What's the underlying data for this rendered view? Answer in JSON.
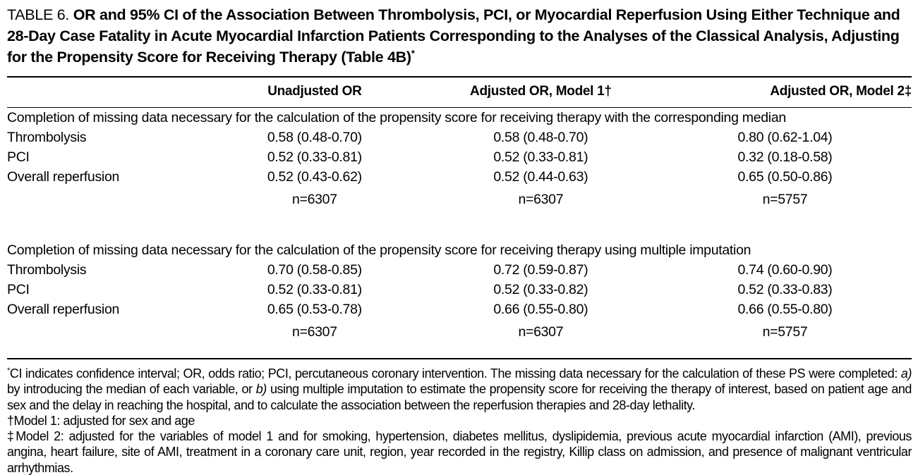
{
  "title": {
    "label": "TABLE 6.",
    "text": "OR and 95% CI of the Association Between Thrombolysis, PCI, or Myocardial Reperfusion Using Either Technique and 28-Day Case Fatality in Acute Myocardial Infarction Patients Corresponding to the Analyses of the Classical Analysis, Adjusting for the Propensity Score for Receiving Therapy (Table 4B)",
    "marker": "*"
  },
  "table": {
    "columns": [
      "",
      "Unadjusted OR",
      "Adjusted OR, Model 1†",
      "Adjusted OR, Model 2‡"
    ],
    "sections": [
      {
        "header": "Completion of missing data necessary for the calculation of the propensity score for receiving therapy with the corresponding median",
        "rows": [
          {
            "label": "Thrombolysis",
            "values": [
              "0.58 (0.48-0.70)",
              "0.58 (0.48-0.70)",
              "0.80 (0.62-1.04)"
            ]
          },
          {
            "label": "PCI",
            "values": [
              "0.52 (0.33-0.81)",
              "0.52 (0.33-0.81)",
              "0.32 (0.18-0.58)"
            ]
          },
          {
            "label": "Overall reperfusion",
            "values": [
              "0.52 (0.43-0.62)",
              "0.52 (0.44-0.63)",
              "0.65 (0.50-0.86)"
            ]
          }
        ],
        "n_row": [
          "n=6307",
          "n=6307",
          "n=5757"
        ]
      },
      {
        "header": "Completion of missing data necessary for the calculation of the propensity score for receiving therapy using multiple imputation",
        "rows": [
          {
            "label": "Thrombolysis",
            "values": [
              "0.70 (0.58-0.85)",
              "0.72 (0.59-0.87)",
              "0.74 (0.60-0.90)"
            ]
          },
          {
            "label": "PCI",
            "values": [
              "0.52 (0.33-0.81)",
              "0.52 (0.33-0.82)",
              "0.52 (0.33-0.83)"
            ]
          },
          {
            "label": "Overall reperfusion",
            "values": [
              "0.65 (0.53-0.78)",
              "0.66 (0.55-0.80)",
              "0.66 (0.55-0.80)"
            ]
          }
        ],
        "n_row": [
          "n=6307",
          "n=6307",
          "n=5757"
        ]
      }
    ]
  },
  "footnotes": {
    "general": {
      "marker": "*",
      "p1": "CI indicates confidence interval; OR, odds ratio; PCI, percutaneous coronary intervention. The missing data necessary for the calculation of these PS were completed: ",
      "i1": "a)",
      "p2": " by introducing the median of each variable, or ",
      "i2": "b)",
      "p3": " using multiple imputation to estimate the propensity score for receiving the therapy of interest, based on patient age and sex and the delay in reaching the hospital, and to calculate the association between the reperfusion therapies and 28-day lethality."
    },
    "model1": "†Model 1: adjusted for sex and age",
    "model2": "‡Model 2: adjusted for the variables of model 1 and for smoking, hypertension, diabetes mellitus, dyslipidemia, previous acute myocardial infarction (AMI), previous angina, heart failure, site of AMI, treatment in a coronary care unit, region, year recorded in the registry, Killip class on admission, and presence of malignant ventricular arrhythmias."
  }
}
